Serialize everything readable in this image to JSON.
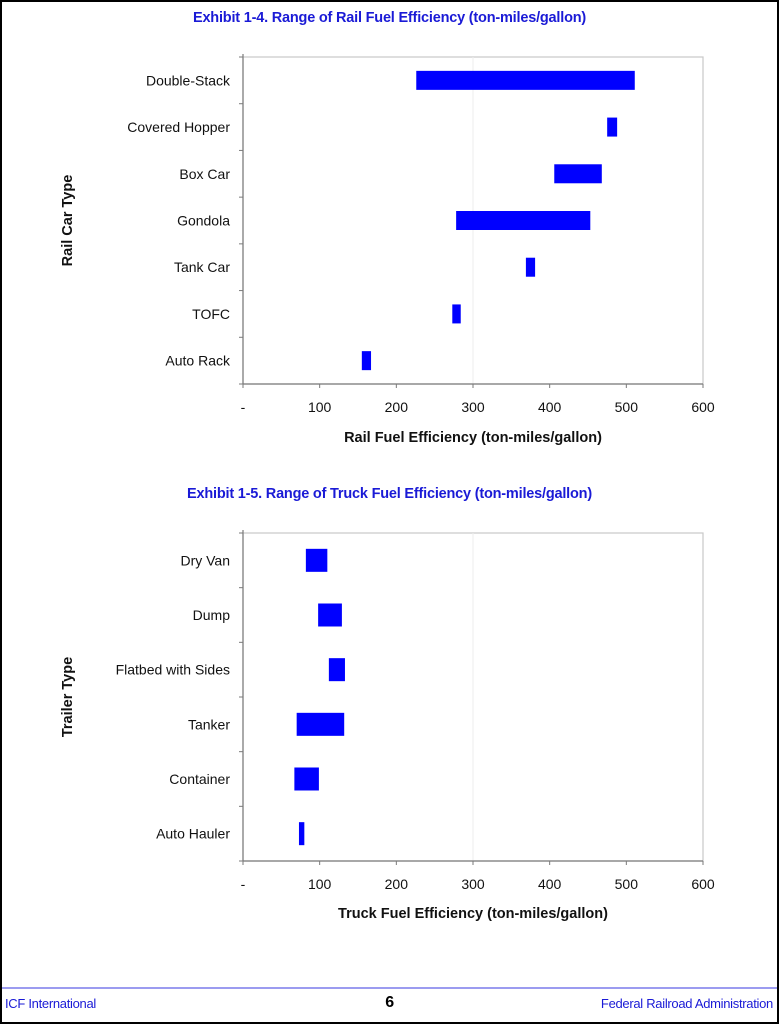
{
  "chart_data": [
    {
      "type": "bar",
      "subtype": "floating-range-horizontal",
      "title": "Exhibit 1-4. Range of Rail Fuel Efficiency (ton-miles/gallon)",
      "xlabel": "Rail Fuel Efficiency (ton-miles/gallon)",
      "ylabel": "Rail Car Type",
      "xlim": [
        0,
        600
      ],
      "xticks": [
        0,
        100,
        200,
        300,
        400,
        500,
        600
      ],
      "xtick_labels": [
        "-",
        "100",
        "200",
        "300",
        "400",
        "500",
        "600"
      ],
      "grid": "faint vertical line at 300",
      "bar_color": "#0000ff",
      "categories": [
        "Double-Stack",
        "Covered Hopper",
        "Box Car",
        "Gondola",
        "Tank Car",
        "TOFC",
        "Auto Rack"
      ],
      "series": [
        {
          "name": "min",
          "values": [
            226,
            475,
            406,
            278,
            369,
            273,
            155
          ]
        },
        {
          "name": "max",
          "values": [
            511,
            488,
            468,
            453,
            381,
            284,
            167
          ]
        }
      ]
    },
    {
      "type": "bar",
      "subtype": "floating-range-horizontal",
      "title": "Exhibit 1-5. Range of Truck Fuel Efficiency (ton-miles/gallon)",
      "xlabel": "Truck Fuel Efficiency (ton-miles/gallon)",
      "ylabel": "Trailer Type",
      "xlim": [
        0,
        600
      ],
      "xticks": [
        0,
        100,
        200,
        300,
        400,
        500,
        600
      ],
      "xtick_labels": [
        "-",
        "100",
        "200",
        "300",
        "400",
        "500",
        "600"
      ],
      "grid": "faint vertical line at 300",
      "bar_color": "#0000ff",
      "categories": [
        "Dry Van",
        "Dump",
        "Flatbed with Sides",
        "Tanker",
        "Container",
        "Auto Hauler"
      ],
      "series": [
        {
          "name": "min",
          "values": [
            82,
            98,
            112,
            70,
            67,
            73
          ]
        },
        {
          "name": "max",
          "values": [
            110,
            129,
            133,
            132,
            99,
            80
          ]
        }
      ]
    }
  ],
  "footer": {
    "left": "ICF International",
    "page_number": "6",
    "right": "Federal Railroad Administration"
  }
}
